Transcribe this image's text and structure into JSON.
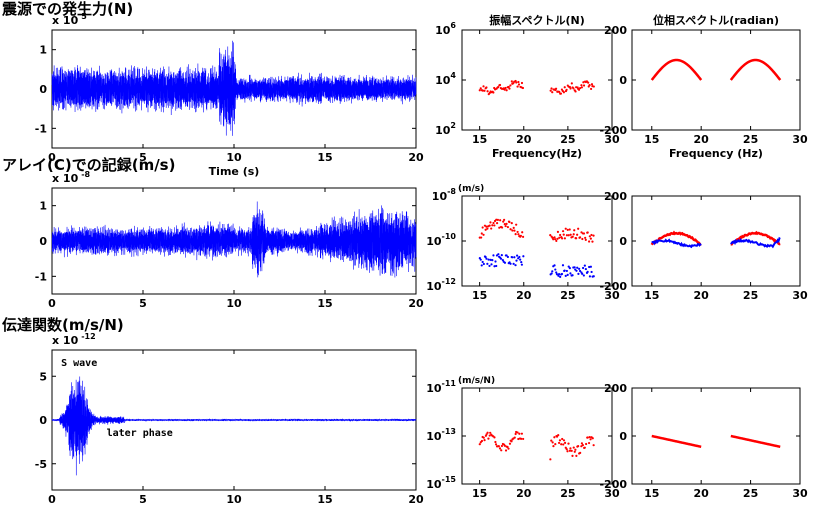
{
  "sections": {
    "force": "震源での発生力(N)",
    "record": "アレイ(C)での記録(m/s)",
    "transfer": "伝達関数(m/s/N)"
  },
  "colors": {
    "blue": "#0000ff",
    "red": "#ff0000"
  },
  "chart_data": [
    {
      "id": "force_time",
      "type": "line",
      "title": "",
      "xlabel": "Time (s)",
      "ylabel": "",
      "exponent_label": "x 10",
      "exponent": "5",
      "xlim": [
        0,
        20
      ],
      "ylim": [
        -1.5,
        1.5
      ],
      "xticks": [
        0,
        5,
        10,
        15,
        20
      ],
      "yticks": [
        -1,
        0,
        1
      ],
      "series": [
        {
          "color": "#0000ff",
          "signal": "random vibration, envelope ~0.6 (peak ~1.4 near t=9.5 s, ~0.35 for t>10 s)"
        }
      ]
    },
    {
      "id": "force_amp",
      "type": "scatter",
      "title": "振幅スペクトル(N)",
      "xlabel": "Frequency(Hz)",
      "ylog": true,
      "ylim": [
        100,
        1000000
      ],
      "xlim": [
        13,
        30
      ],
      "xticks": [
        15,
        20,
        25,
        30
      ],
      "yticks": [
        {
          "base": "10",
          "exp": "2"
        },
        {
          "base": "10",
          "exp": "4"
        },
        {
          "base": "10",
          "exp": "6"
        }
      ],
      "series": [
        {
          "color": "#ff0000",
          "bands": [
            [
              15,
              20
            ],
            [
              23,
              28
            ]
          ],
          "level": 5000
        }
      ]
    },
    {
      "id": "force_phase",
      "type": "line",
      "title": "位相スペクトル(radian)",
      "xlabel": "Frequency (Hz)",
      "xlim": [
        13,
        30
      ],
      "ylim": [
        -200,
        200
      ],
      "xticks": [
        15,
        20,
        25,
        30
      ],
      "yticks": [
        -200,
        0,
        200
      ],
      "series": [
        {
          "color": "#ff0000",
          "bands": [
            [
              15,
              20
            ],
            [
              23,
              28
            ]
          ],
          "peak": 80
        }
      ]
    },
    {
      "id": "record_time",
      "type": "line",
      "title": "",
      "xlabel": "",
      "ylabel": "",
      "exponent_label": "x 10",
      "exponent": "-8",
      "xlim": [
        0,
        20
      ],
      "ylim": [
        -1.5,
        1.5
      ],
      "xticks": [
        0,
        5,
        10,
        15,
        20
      ],
      "yticks": [
        -1,
        0,
        1
      ],
      "series": [
        {
          "color": "#0000ff",
          "signal": "random vibration, envelope ~0.5, spikes near t=11.3 s, growing to ~1.2 near t=18.5 s"
        }
      ]
    },
    {
      "id": "record_amp",
      "type": "scatter",
      "title": "",
      "unit_label": "(m/s)",
      "xlabel": "",
      "ylog": true,
      "ylim": [
        1e-12,
        1e-08
      ],
      "xlim": [
        13,
        30
      ],
      "xticks": [
        15,
        20,
        25,
        30
      ],
      "yticks": [
        {
          "base": "10",
          "exp": "-12"
        },
        {
          "base": "10",
          "exp": "-10"
        },
        {
          "base": "10",
          "exp": "-8"
        }
      ],
      "series": [
        {
          "color": "#ff0000",
          "bands": [
            [
              15,
              20
            ],
            [
              23,
              28
            ]
          ],
          "level": 3e-10
        },
        {
          "color": "#0000ff",
          "bands": [
            [
              15,
              20
            ],
            [
              23,
              28
            ]
          ],
          "level": 1e-11
        }
      ]
    },
    {
      "id": "record_phase",
      "type": "line",
      "title": "",
      "xlabel": "",
      "xlim": [
        13,
        30
      ],
      "ylim": [
        -200,
        200
      ],
      "xticks": [
        15,
        20,
        25,
        30
      ],
      "yticks": [
        -200,
        0,
        200
      ],
      "series": [
        {
          "color": "#ff0000",
          "bands": [
            [
              15,
              20
            ],
            [
              23,
              28
            ]
          ],
          "peak": 50
        },
        {
          "color": "#0000ff",
          "bands": [
            [
              15,
              20
            ],
            [
              23,
              28
            ]
          ],
          "peak": 0
        }
      ]
    },
    {
      "id": "transfer_time",
      "type": "line",
      "title": "",
      "xlabel": "",
      "ylabel": "",
      "exponent_label": "x 10",
      "exponent": "-12",
      "xlim": [
        0,
        20
      ],
      "ylim": [
        -8,
        8
      ],
      "xticks": [
        0,
        5,
        10,
        15,
        20
      ],
      "yticks": [
        -5,
        0,
        5
      ],
      "annotations": [
        {
          "text": "S wave",
          "x": 0.5,
          "y": 6.2
        },
        {
          "text": "later phase",
          "x": 3,
          "y": -1.8
        }
      ],
      "series": [
        {
          "color": "#0000ff",
          "signal": "impulse response, burst 0.5–2.5 s (peak ~7 at 1.4 s), small coda afterwards"
        }
      ]
    },
    {
      "id": "transfer_amp",
      "type": "scatter",
      "title": "",
      "unit_label": "(m/s/N)",
      "xlabel": "",
      "ylog": true,
      "ylim": [
        1e-15,
        1e-11
      ],
      "xlim": [
        13,
        30
      ],
      "xticks": [
        15,
        20,
        25,
        30
      ],
      "yticks": [
        {
          "base": "10",
          "exp": "-15"
        },
        {
          "base": "10",
          "exp": "-13"
        },
        {
          "base": "10",
          "exp": "-11"
        }
      ],
      "series": [
        {
          "color": "#ff0000",
          "bands": [
            [
              15,
              20
            ],
            [
              23,
              28
            ]
          ],
          "level": 5e-14
        }
      ]
    },
    {
      "id": "transfer_phase",
      "type": "line",
      "title": "",
      "xlabel": "",
      "xlim": [
        13,
        30
      ],
      "ylim": [
        -200,
        200
      ],
      "xticks": [
        15,
        20,
        25,
        30
      ],
      "yticks": [
        -200,
        0,
        200
      ],
      "series": [
        {
          "color": "#ff0000",
          "bands": [
            [
              15,
              20
            ],
            [
              23,
              28
            ]
          ],
          "slope": -10
        }
      ]
    }
  ]
}
